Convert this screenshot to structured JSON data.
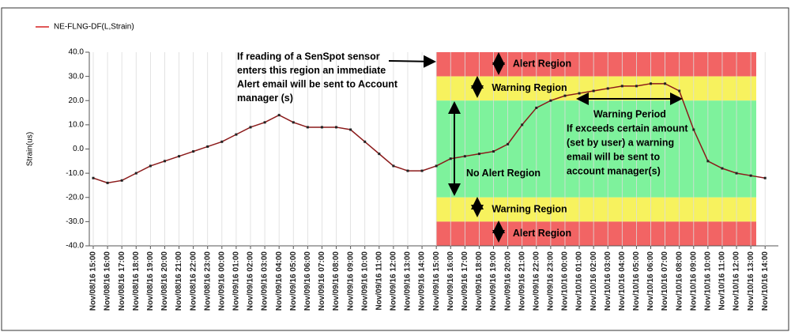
{
  "chart_data": {
    "type": "line",
    "legend": "NE-FLNG-DF(L,Strain)",
    "y_label": "Strain(us)",
    "color": "#8b1a1a",
    "legend_color": "#d62020",
    "grid": true,
    "ylim": [
      -40,
      40
    ],
    "yticks": [
      {
        "value": -40,
        "label": "-40.0"
      },
      {
        "value": -30,
        "label": "-30.0"
      },
      {
        "value": -20,
        "label": "-20.0"
      },
      {
        "value": -10,
        "label": "-10.0"
      },
      {
        "value": 0,
        "label": "0.0"
      },
      {
        "value": 10,
        "label": "10.0"
      },
      {
        "value": 20,
        "label": "20.0"
      },
      {
        "value": 30,
        "label": "30.0"
      },
      {
        "value": 40,
        "label": "40.0"
      }
    ],
    "categories": [
      "Nov/08/16 15:00",
      "Nov/08/16 16:00",
      "Nov/08/16 17:00",
      "Nov/08/16 18:00",
      "Nov/08/16 19:00",
      "Nov/08/16 20:00",
      "Nov/08/16 21:00",
      "Nov/08/16 22:00",
      "Nov/08/16 23:00",
      "Nov/09/16 00:00",
      "Nov/09/16 01:00",
      "Nov/09/16 02:00",
      "Nov/09/16 03:00",
      "Nov/09/16 04:00",
      "Nov/09/16 05:00",
      "Nov/09/16 06:00",
      "Nov/09/16 07:00",
      "Nov/09/16 08:00",
      "Nov/09/16 09:00",
      "Nov/09/16 10:00",
      "Nov/09/16 11:00",
      "Nov/09/16 12:00",
      "Nov/09/16 13:00",
      "Nov/09/16 14:00",
      "Nov/09/16 15:00",
      "Nov/09/16 16:00",
      "Nov/09/16 17:00",
      "Nov/09/16 18:00",
      "Nov/09/16 19:00",
      "Nov/09/16 20:00",
      "Nov/09/16 21:00",
      "Nov/09/16 22:00",
      "Nov/09/16 23:00",
      "Nov/10/16 00:00",
      "Nov/10/16 01:00",
      "Nov/10/16 02:00",
      "Nov/10/16 03:00",
      "Nov/10/16 04:00",
      "Nov/10/16 05:00",
      "Nov/10/16 06:00",
      "Nov/10/16 07:00",
      "Nov/10/16 08:00",
      "Nov/10/16 09:00",
      "Nov/10/16 10:00",
      "Nov/10/16 11:00",
      "Nov/10/16 12:00",
      "Nov/10/16 13:00",
      "Nov/10/16 14:00"
    ],
    "values": [
      -12,
      -14,
      -13,
      -10,
      -7,
      -5,
      -3,
      -1,
      1,
      3,
      6,
      9,
      11,
      14,
      11,
      9,
      9,
      9,
      8,
      3,
      -2,
      -7,
      -9,
      -9,
      -7,
      -4,
      -3,
      -2,
      -1,
      2,
      10,
      17,
      20,
      22,
      23,
      24,
      25,
      26,
      26,
      27,
      27,
      24,
      8,
      -5,
      -8,
      -10,
      -11,
      -12
    ],
    "regions": [
      {
        "label": "Alert Region",
        "from": 30,
        "to": 40,
        "color": "#f26464"
      },
      {
        "label": "Warning Region",
        "from": 20,
        "to": 30,
        "color": "#f7f25e"
      },
      {
        "label": "No Alert Region",
        "from": -20,
        "to": 20,
        "color": "#7ef29c"
      },
      {
        "label": "Warning Region",
        "from": -30,
        "to": -20,
        "color": "#f7f25e"
      },
      {
        "label": "Alert Region",
        "from": -40,
        "to": -30,
        "color": "#f26464"
      }
    ],
    "annotations": [
      [
        "If reading of a SenSpot sensor",
        "enters this region an immediate",
        "Alert email will be sent to Account",
        "manager (s)"
      ],
      [
        "Warning Period",
        "If exceeds certain amount",
        "(set by user) a warning",
        "email  will be sent to",
        "account manager(s)"
      ]
    ]
  }
}
